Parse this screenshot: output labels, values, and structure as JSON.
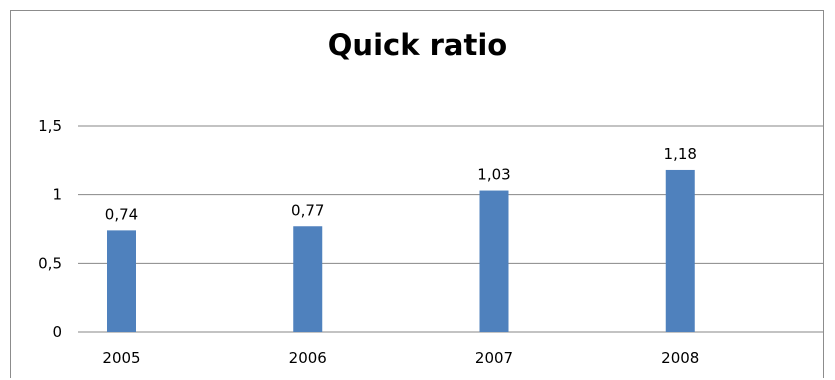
{
  "chart_data": {
    "type": "bar",
    "title": "Quick ratio",
    "categories": [
      "2005",
      "2006",
      "2007",
      "2008"
    ],
    "values": [
      0.74,
      0.77,
      1.03,
      1.18
    ],
    "data_labels": [
      "0,74",
      "0,77",
      "1,03",
      "1,18"
    ],
    "yticks": [
      0,
      0.5,
      1,
      1.5
    ],
    "ytick_labels": [
      "0",
      "0,5",
      "1",
      "1,5"
    ],
    "ylim": [
      0,
      1.5
    ],
    "xlabel": "",
    "ylabel": "",
    "grid": true,
    "legend": "none",
    "bar_color": "#4f81bd",
    "grid_color": "#878787"
  }
}
